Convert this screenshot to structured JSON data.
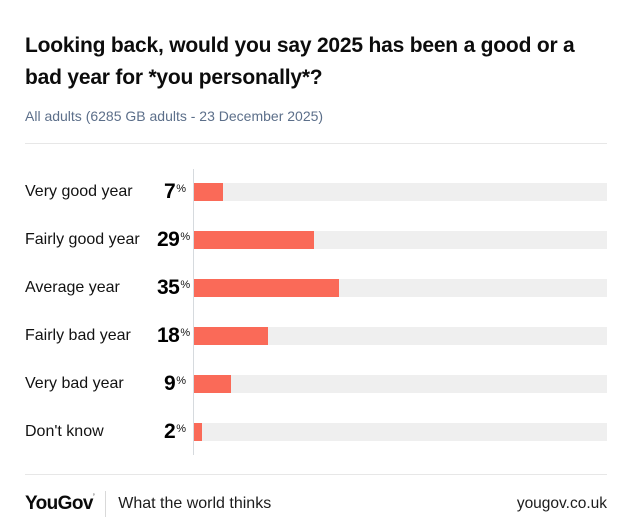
{
  "header": {
    "title": "Looking back, would you say 2025 has been a good or a bad year for *you personally*?",
    "subtitle": "All adults (6285 GB adults - 23 December 2025)"
  },
  "chart_data": {
    "type": "bar",
    "orientation": "horizontal",
    "categories": [
      "Very good year",
      "Fairly good year",
      "Average year",
      "Fairly bad year",
      "Very bad year",
      "Don't know"
    ],
    "values": [
      7,
      29,
      35,
      18,
      9,
      2
    ],
    "unit": "%",
    "xlim": [
      0,
      100
    ],
    "grid": false,
    "legend": false,
    "bar_color": "#fa6a58",
    "track_color": "#efefef",
    "title": "Looking back, would you say 2025 has been a good or a bad year for *you personally*?",
    "xlabel": "",
    "ylabel": ""
  },
  "footer": {
    "logo": "YouGov",
    "logo_mark": "’",
    "tagline": "What the world thinks",
    "url": "yougov.co.uk"
  }
}
